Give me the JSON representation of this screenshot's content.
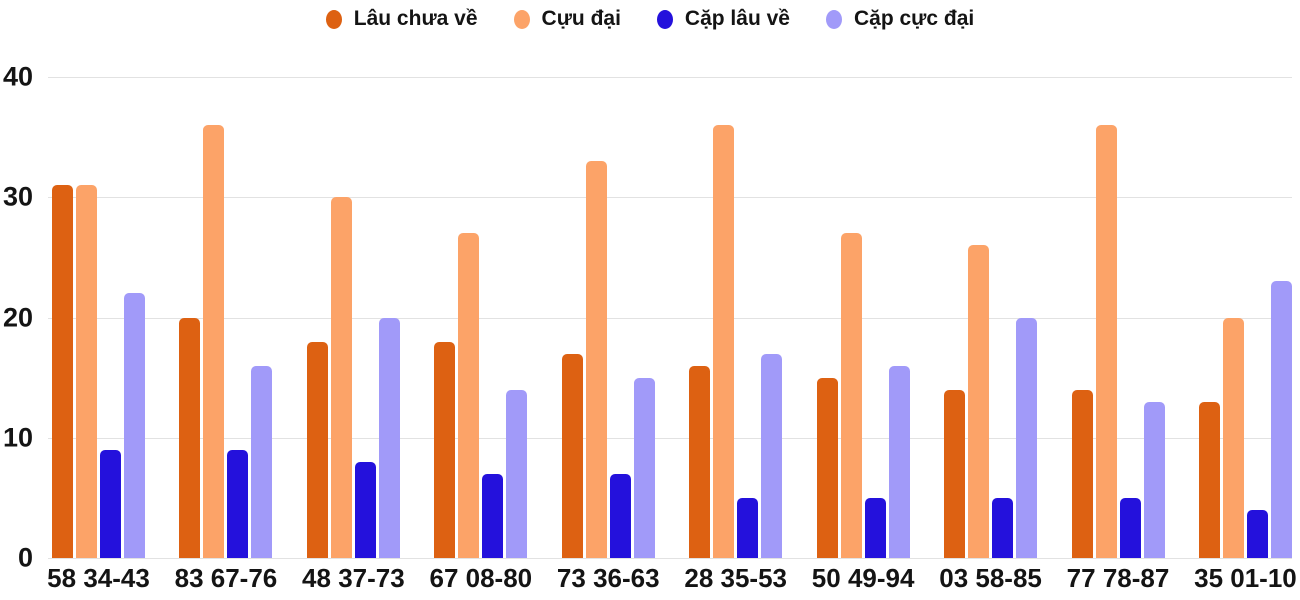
{
  "colors": {
    "text": "#141414",
    "gridline": "#e2e2e2",
    "background": "#ffffff"
  },
  "chart_data": {
    "type": "bar",
    "title": "",
    "xlabel": "",
    "ylabel": "",
    "grid": true,
    "legend_position": "top",
    "ylim": [
      0,
      40
    ],
    "yticks": [
      0,
      10,
      20,
      30,
      40
    ],
    "categories": [
      "58 34-43",
      "83 67-76",
      "48 37-73",
      "67 08-80",
      "73 36-63",
      "28 35-53",
      "50 49-94",
      "03 58-85",
      "77 78-87",
      "35 01-10"
    ],
    "series": [
      {
        "name": "Lâu chưa về",
        "color": "#dd6112",
        "values": [
          31,
          20,
          18,
          18,
          17,
          16,
          15,
          14,
          14,
          13
        ]
      },
      {
        "name": "Cựu đại",
        "color": "#fca368",
        "values": [
          31,
          36,
          30,
          27,
          33,
          36,
          27,
          26,
          36,
          20
        ]
      },
      {
        "name": "Cặp lâu về",
        "color": "#2411dc",
        "values": [
          9,
          9,
          8,
          7,
          7,
          5,
          5,
          5,
          5,
          4
        ]
      },
      {
        "name": "Cặp cực đại",
        "color": "#a19af9",
        "values": [
          22,
          16,
          20,
          14,
          15,
          17,
          16,
          20,
          13,
          23
        ]
      }
    ]
  }
}
